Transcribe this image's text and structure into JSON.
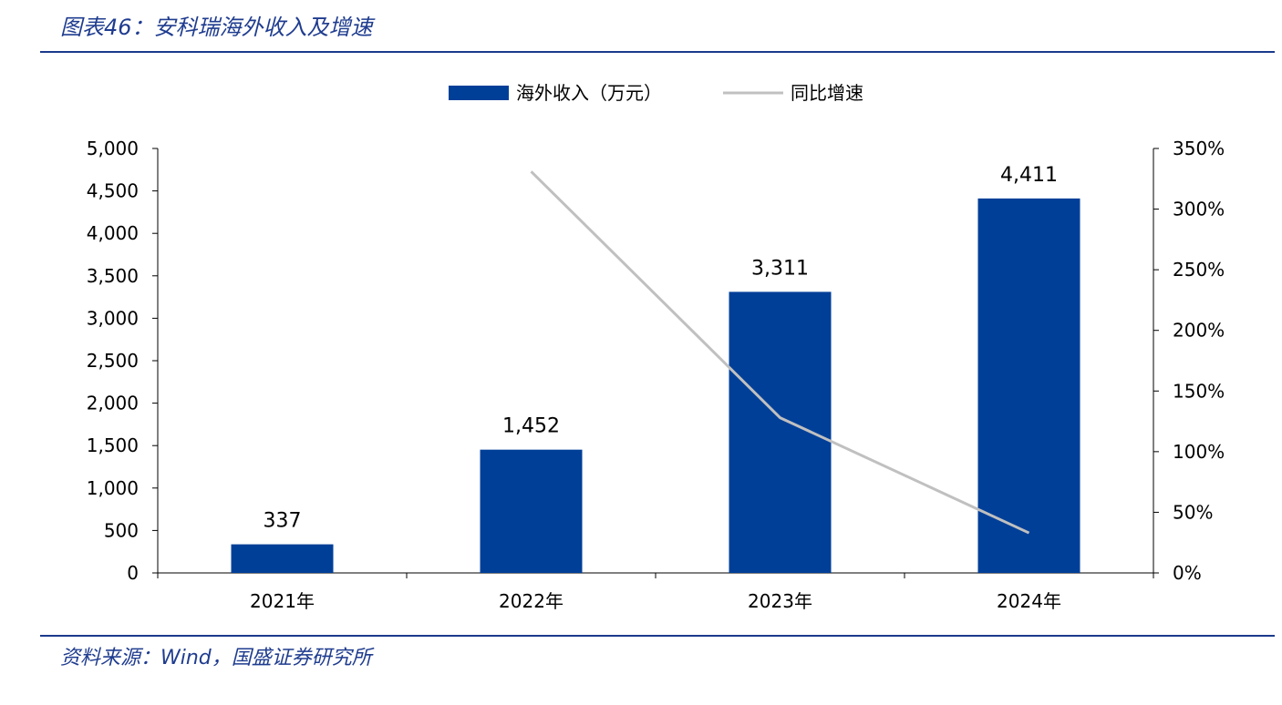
{
  "figure": {
    "title": "图表46：安科瑞海外收入及增速",
    "source": "资料来源：Wind，国盛证券研究所"
  },
  "colors": {
    "bar": "#003f98",
    "line": "#c0c0c0",
    "rule": "#1a3a8c",
    "title": "#1f3c8f"
  },
  "chart_data": {
    "type": "bar",
    "categories": [
      "2021年",
      "2022年",
      "2023年",
      "2024年"
    ],
    "series": [
      {
        "name": "海外收入（万元）",
        "type": "bar",
        "axis": "left",
        "values": [
          337,
          1452,
          3311,
          4411
        ],
        "data_labels": [
          "337",
          "1,452",
          "3,311",
          "4,411"
        ]
      },
      {
        "name": "同比增速",
        "type": "line",
        "axis": "right",
        "values": [
          null,
          331,
          128,
          33
        ]
      }
    ],
    "y_left": {
      "lim": [
        0,
        5000
      ],
      "ticks": [
        0,
        500,
        1000,
        1500,
        2000,
        2500,
        3000,
        3500,
        4000,
        4500,
        5000
      ],
      "tick_labels": [
        "0",
        "500",
        "1,000",
        "1,500",
        "2,000",
        "2,500",
        "3,000",
        "3,500",
        "4,000",
        "4,500",
        "5,000"
      ]
    },
    "y_right": {
      "lim": [
        0,
        350
      ],
      "ticks": [
        0,
        50,
        100,
        150,
        200,
        250,
        300,
        350
      ],
      "tick_labels": [
        "0%",
        "50%",
        "100%",
        "150%",
        "200%",
        "250%",
        "300%",
        "350%"
      ]
    },
    "legend": "top-center",
    "grid": false
  }
}
